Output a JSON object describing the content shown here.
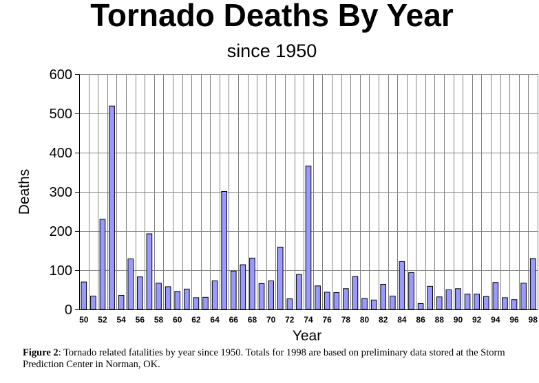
{
  "chart_data": {
    "type": "bar",
    "title": "Tornado Deaths By Year",
    "subtitle": "since 1950",
    "xlabel": "Year",
    "ylabel": "Deaths",
    "ylim": [
      0,
      600
    ],
    "yticks": [
      "0",
      "100",
      "200",
      "300",
      "400",
      "500",
      "600"
    ],
    "grid": true,
    "bar_color": "#9999ff",
    "categories": [
      "50",
      "51",
      "52",
      "53",
      "54",
      "55",
      "56",
      "57",
      "58",
      "59",
      "60",
      "61",
      "62",
      "63",
      "64",
      "65",
      "66",
      "67",
      "68",
      "69",
      "70",
      "71",
      "72",
      "73",
      "74",
      "75",
      "76",
      "77",
      "78",
      "79",
      "80",
      "81",
      "82",
      "83",
      "84",
      "85",
      "86",
      "87",
      "88",
      "89",
      "90",
      "91",
      "92",
      "93",
      "94",
      "95",
      "96",
      "97",
      "98"
    ],
    "tick_labels": [
      "50",
      "52",
      "54",
      "56",
      "58",
      "60",
      "62",
      "64",
      "66",
      "68",
      "70",
      "72",
      "74",
      "76",
      "78",
      "80",
      "82",
      "84",
      "86",
      "88",
      "90",
      "92",
      "94",
      "96",
      "98"
    ],
    "values": [
      70,
      34,
      230,
      519,
      36,
      129,
      83,
      193,
      67,
      58,
      46,
      52,
      30,
      31,
      73,
      301,
      98,
      114,
      131,
      66,
      73,
      159,
      27,
      89,
      366,
      60,
      44,
      43,
      53,
      84,
      28,
      24,
      64,
      34,
      122,
      94,
      15,
      59,
      32,
      50,
      53,
      39,
      39,
      33,
      69,
      30,
      25,
      67,
      130
    ]
  },
  "caption": {
    "label": "Figure 2",
    "text": ": Tornado related fatalities by year since 1950.  Totals for 1998 are based on preliminary data stored at the Storm Prediction Center in Norman, OK."
  }
}
